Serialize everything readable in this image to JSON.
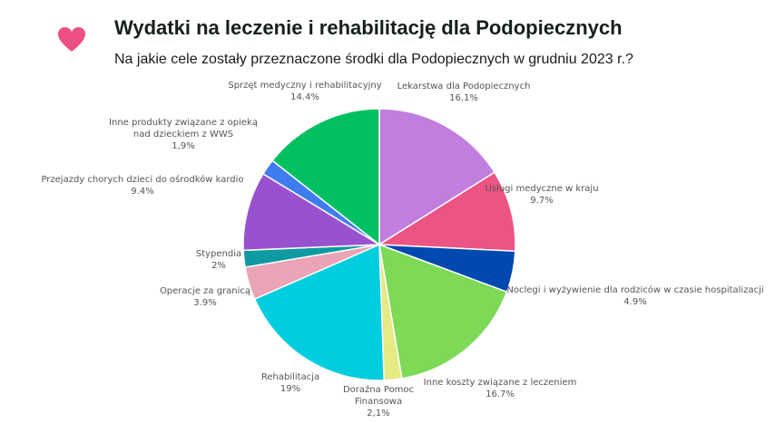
{
  "header": {
    "title": "Wydatki na leczenie i rehabilitację dla Podopiecznych",
    "subtitle": "Na jakie cele zostały przeznaczone środki dla Podopiecznych w grudniu 2023 r.?",
    "icon": "heart-icon",
    "icon_color": "#ec4f82"
  },
  "chart_data": {
    "type": "pie",
    "title": "Wydatki na leczenie i rehabilitację dla Podopiecznych",
    "subtitle": "Na jakie cele zostały przeznaczone środki dla Podopiecznych w grudniu 2023 r.?",
    "start": "12 o'clock, clockwise",
    "slices": [
      {
        "label": [
          "Lekarstwa dla Podopiecznych"
        ],
        "value": 16.1,
        "value_text": "16.1%",
        "color": "#c27ede"
      },
      {
        "label": [
          "Usługi medyczne w kraju"
        ],
        "value": 9.7,
        "value_text": "9.7%",
        "color": "#ec5583"
      },
      {
        "label": [
          "Noclegi i wyżywienie dla rodziców w czasie hospitalizacji"
        ],
        "value": 4.9,
        "value_text": "4.9%",
        "color": "#0049b0"
      },
      {
        "label": [
          "Inne koszty związane z leczeniem"
        ],
        "value": 16.7,
        "value_text": "16.7%",
        "color": "#7ed957"
      },
      {
        "label": [
          "Doraźna Pomoc",
          "Finansowa"
        ],
        "value": 2.1,
        "value_text": "2,1%",
        "color": "#e6ea82"
      },
      {
        "label": [
          "Rehabilitacja"
        ],
        "value": 19,
        "value_text": "19%",
        "color": "#00cddd"
      },
      {
        "label": [
          "Operacje za granicą"
        ],
        "value": 3.9,
        "value_text": "3.9%",
        "color": "#eba3b6"
      },
      {
        "label": [
          "Stypendia"
        ],
        "value": 2,
        "value_text": "2%",
        "color": "#0f9aa2"
      },
      {
        "label": [
          "Przejazdy chorych dzieci do ośrodków kardio"
        ],
        "value": 9.4,
        "value_text": "9.4%",
        "color": "#9952cf"
      },
      {
        "label": [
          "Inne produkty związane z opieką",
          "nad dzieckiem z WWS"
        ],
        "value": 1.9,
        "value_text": "1,9%",
        "color": "#3f7cf0"
      },
      {
        "label": [
          "Sprzęt medyczny i rehabilitacyjny"
        ],
        "value": 14.4,
        "value_text": "14.4%",
        "color": "#00c061"
      }
    ]
  }
}
